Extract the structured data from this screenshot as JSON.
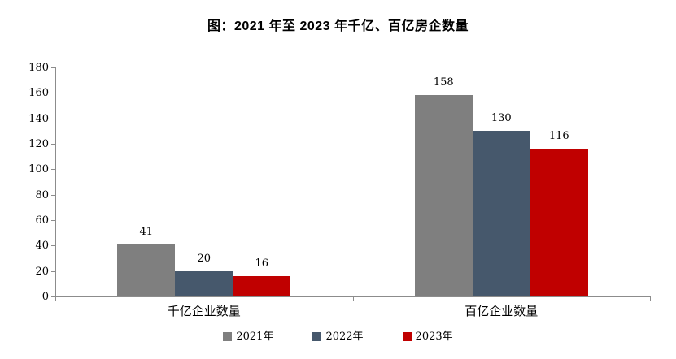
{
  "chart_data": {
    "type": "bar",
    "title": "图：2021 年至 2023 年千亿、百亿房企数量",
    "categories": [
      "千亿企业数量",
      "百亿企业数量"
    ],
    "series": [
      {
        "name": "2021年",
        "color": "#7F7F7F",
        "values": [
          41,
          158
        ]
      },
      {
        "name": "2022年",
        "color": "#46586C",
        "values": [
          20,
          130
        ]
      },
      {
        "name": "2023年",
        "color": "#C00000",
        "values": [
          16,
          116
        ]
      }
    ],
    "ylim": [
      0,
      180
    ],
    "ytick_step": 20,
    "yticks": [
      0,
      20,
      40,
      60,
      80,
      100,
      120,
      140,
      160,
      180
    ],
    "xlabel": "",
    "ylabel": "",
    "grid": false,
    "legend_position": "bottom",
    "axis_color": "#8C8C8C",
    "text_color": "#000000",
    "background_color": "#FFFFFF"
  }
}
